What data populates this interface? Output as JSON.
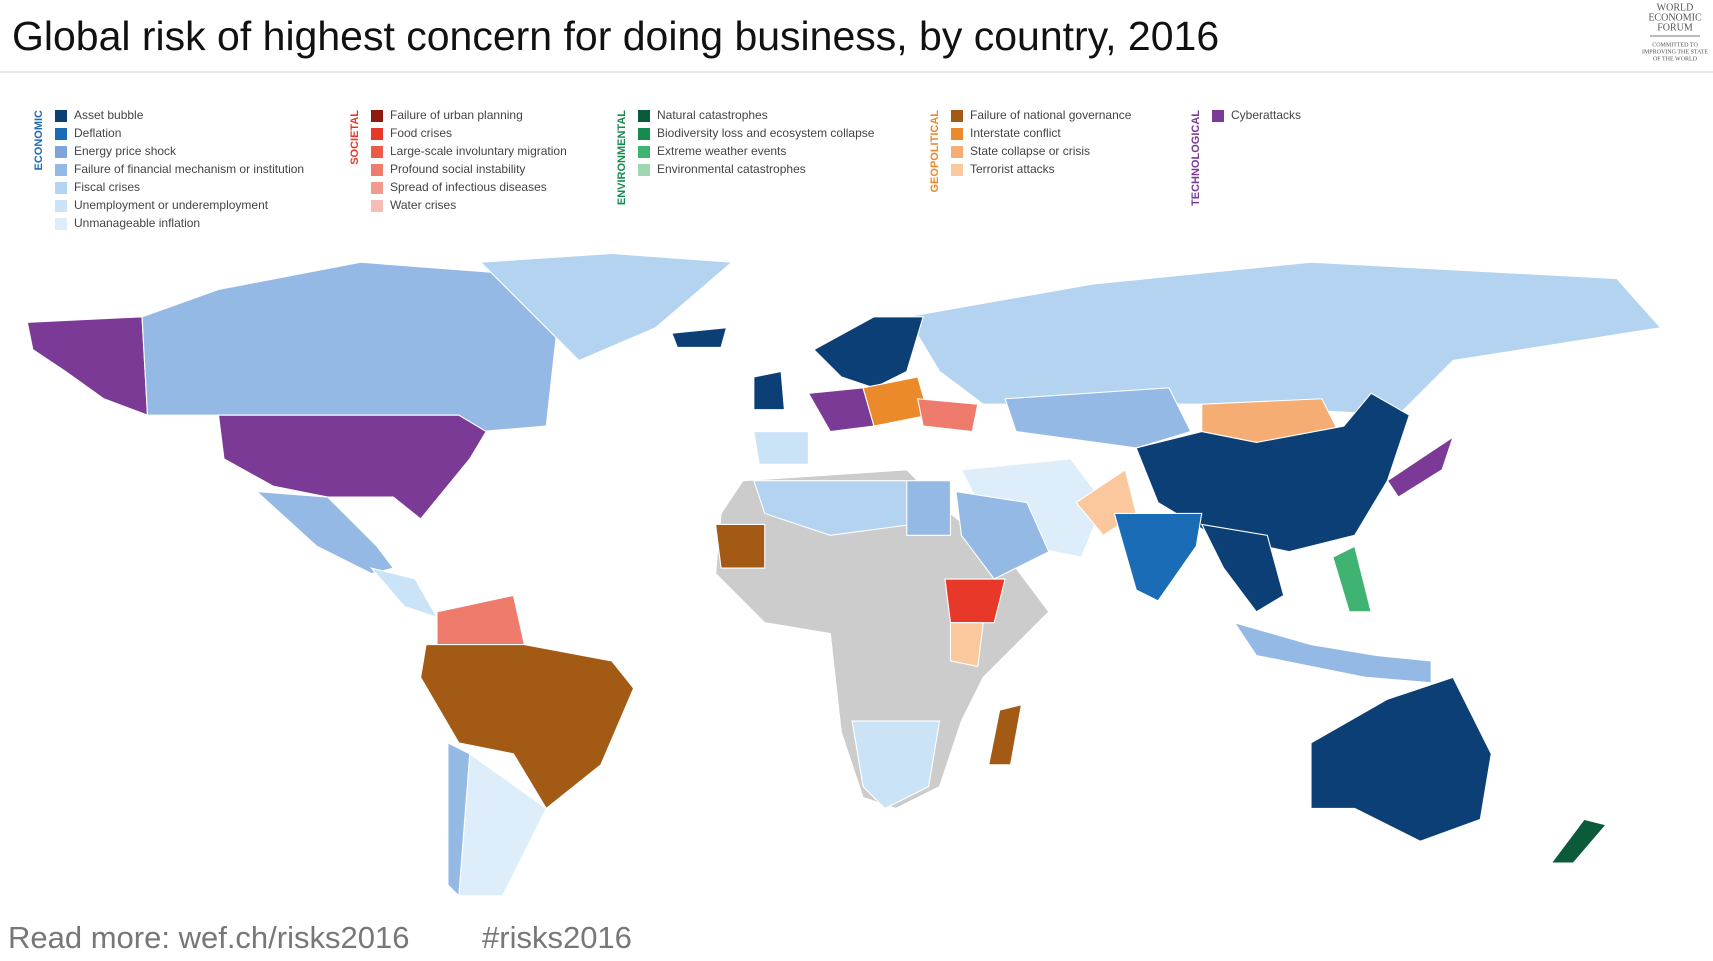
{
  "header": {
    "title": "Global risk of highest concern for doing business, by country, 2016",
    "logo": [
      "WORLD",
      "ECONOMIC",
      "FORUM"
    ],
    "logo_tagline": [
      "COMMITTED TO",
      "IMPROVING THE STATE",
      "OF THE WORLD"
    ]
  },
  "legend": [
    {
      "label": "ECONOMIC",
      "color": "#1b6cb6",
      "items": [
        {
          "name": "Asset bubble",
          "color": "#0c3f75"
        },
        {
          "name": "Deflation",
          "color": "#1b6cb6"
        },
        {
          "name": "Energy price shock",
          "color": "#7ba5dc"
        },
        {
          "name": "Failure of financial mechanism or institution",
          "color": "#95b9e5"
        },
        {
          "name": "Fiscal crises",
          "color": "#b3d3f0"
        },
        {
          "name": "Unemployment or underemployment",
          "color": "#cbe3f6"
        },
        {
          "name": "Unmanageable inflation",
          "color": "#ddeefa"
        }
      ]
    },
    {
      "label": "SOCIETAL",
      "color": "#e8382a",
      "items": [
        {
          "name": "Failure of urban planning",
          "color": "#8e1b10"
        },
        {
          "name": "Food crises",
          "color": "#e8382a"
        },
        {
          "name": "Large-scale involuntary migration",
          "color": "#ec5a48"
        },
        {
          "name": "Profound social instability",
          "color": "#ef7b6c"
        },
        {
          "name": "Spread of infectious diseases",
          "color": "#f29a8e"
        },
        {
          "name": "Water crises",
          "color": "#f7bcb6"
        }
      ]
    },
    {
      "label": "ENVIRONMENTAL",
      "color": "#178a4f",
      "items": [
        {
          "name": "Natural catastrophes",
          "color": "#0b5b3a"
        },
        {
          "name": "Biodiversity loss and ecosystem collapse",
          "color": "#178a4f"
        },
        {
          "name": "Extreme weather events",
          "color": "#3fb472"
        },
        {
          "name": "Environmental catastrophes",
          "color": "#9fd7b0"
        }
      ]
    },
    {
      "label": "GEOPOLITICAL",
      "color": "#ea8a2a",
      "items": [
        {
          "name": "Failure of national governance",
          "color": "#a35a14"
        },
        {
          "name": "Interstate conflict",
          "color": "#ea8a2a"
        },
        {
          "name": "State collapse or crisis",
          "color": "#f6ad74"
        },
        {
          "name": "Terrorist attacks",
          "color": "#fac89c"
        }
      ]
    },
    {
      "label": "TECHNOLOGICAL",
      "color": "#7b3a96",
      "items": [
        {
          "name": "Cyberattacks",
          "color": "#7b3a96"
        }
      ]
    }
  ],
  "footer": [
    "Read more: wef.ch/risks2016",
    "#risks2016"
  ]
}
